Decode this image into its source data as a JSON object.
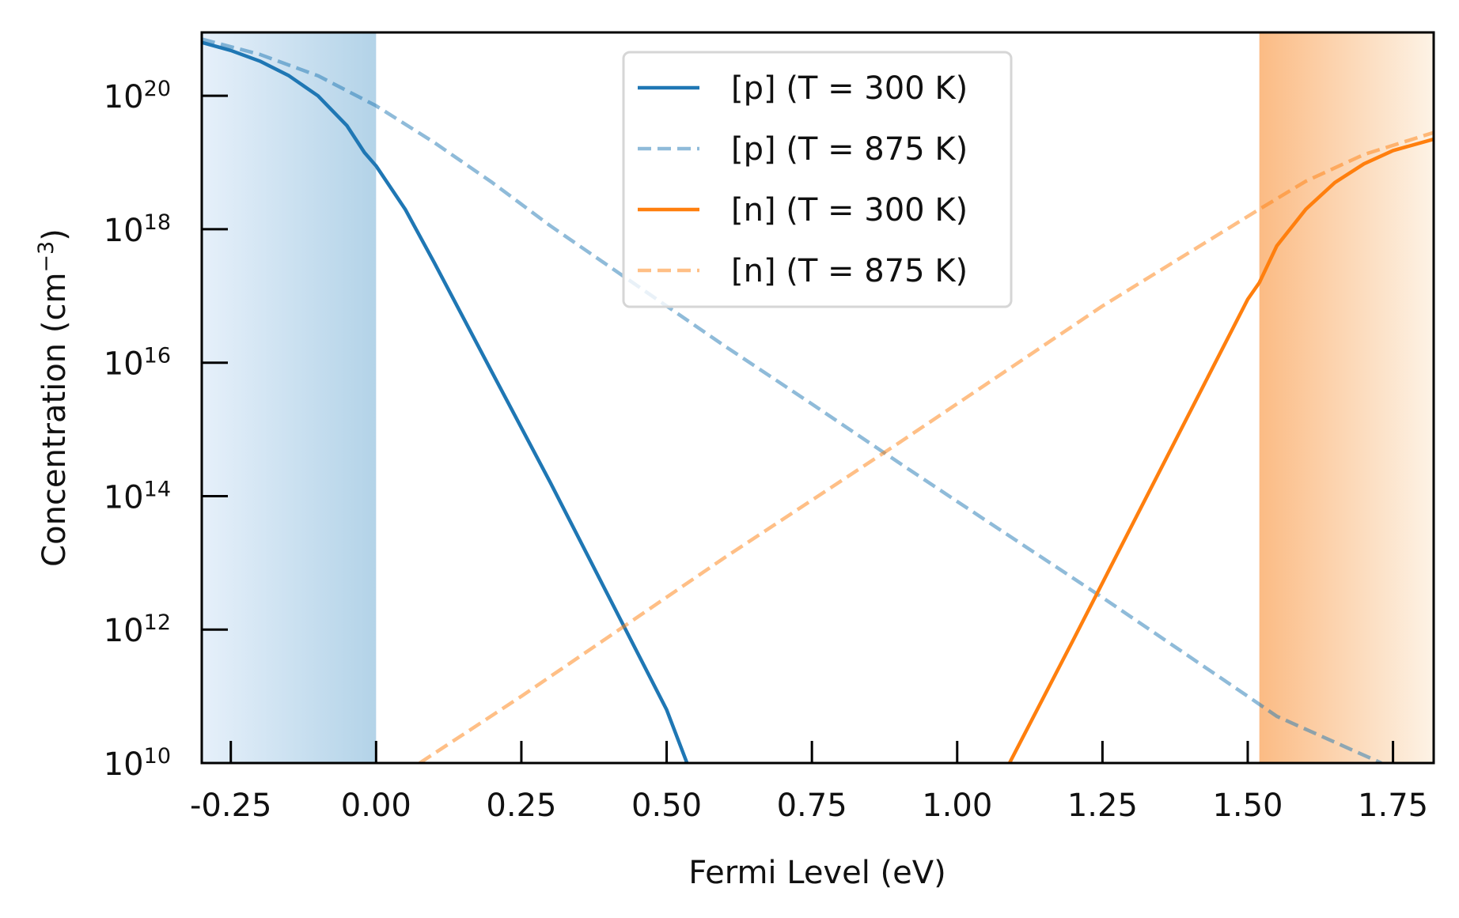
{
  "chart_data": {
    "type": "line",
    "xlabel": "Fermi Level (eV)",
    "ylabel": {
      "base": "Concentration (cm",
      "exp": "−3",
      "close": ")"
    },
    "xlim": [
      -0.3,
      1.82
    ],
    "ylim_log10": [
      10,
      20.95
    ],
    "y_scale": "log",
    "grid": false,
    "legend_position": "top-center",
    "x_ticks": [
      {
        "value": -0.25,
        "label": "-0.25"
      },
      {
        "value": 0.0,
        "label": "0.00"
      },
      {
        "value": 0.25,
        "label": "0.25"
      },
      {
        "value": 0.5,
        "label": "0.50"
      },
      {
        "value": 0.75,
        "label": "0.75"
      },
      {
        "value": 1.0,
        "label": "1.00"
      },
      {
        "value": 1.25,
        "label": "1.25"
      },
      {
        "value": 1.5,
        "label": "1.50"
      },
      {
        "value": 1.75,
        "label": "1.75"
      }
    ],
    "y_ticks": [
      {
        "exp": 10,
        "base": "10",
        "sup": "10"
      },
      {
        "exp": 12,
        "base": "10",
        "sup": "12"
      },
      {
        "exp": 14,
        "base": "10",
        "sup": "14"
      },
      {
        "exp": 16,
        "base": "10",
        "sup": "16"
      },
      {
        "exp": 18,
        "base": "10",
        "sup": "18"
      },
      {
        "exp": 20,
        "base": "10",
        "sup": "20"
      }
    ],
    "shaded_regions": [
      {
        "name": "valence-band",
        "x0": -0.3,
        "x1": 0.0,
        "color_light": "#e6f0fa",
        "color_dark": "#b3d3e8",
        "fade": "to-left"
      },
      {
        "name": "conduction-band",
        "x0": 1.52,
        "x1": 1.82,
        "color_light": "#fdf3e6",
        "color_dark": "#fbbb84",
        "fade": "to-right"
      }
    ],
    "series": [
      {
        "name": "[p] (T = 300 K)",
        "color": "#1f77b4",
        "dash": "solid",
        "opacity": 1,
        "x": [
          -0.3,
          -0.25,
          -0.2,
          -0.15,
          -0.1,
          -0.05,
          -0.02,
          0.0,
          0.05,
          0.1,
          0.2,
          0.3,
          0.4,
          0.5,
          0.535
        ],
        "log10_y": [
          20.8,
          20.68,
          20.52,
          20.3,
          20.0,
          19.55,
          19.15,
          18.95,
          18.3,
          17.5,
          15.85,
          14.2,
          12.5,
          10.8,
          10.0
        ]
      },
      {
        "name": "[p] (T = 875 K)",
        "color": "#1f77b4",
        "dash": "dashed",
        "opacity": 0.5,
        "x": [
          -0.3,
          -0.2,
          -0.1,
          0.0,
          0.1,
          0.2,
          0.3,
          0.4,
          0.5,
          0.6,
          0.75,
          0.9,
          1.0,
          1.25,
          1.5,
          1.55,
          1.73
        ],
        "log10_y": [
          20.85,
          20.62,
          20.3,
          19.85,
          19.3,
          18.7,
          18.05,
          17.45,
          16.85,
          16.25,
          15.38,
          14.5,
          13.92,
          12.48,
          11.0,
          10.7,
          10.0
        ]
      },
      {
        "name": "[n] (T = 300 K)",
        "color": "#ff7f0e",
        "dash": "solid",
        "opacity": 1,
        "x": [
          1.09,
          1.2,
          1.3,
          1.4,
          1.5,
          1.52,
          1.55,
          1.6,
          1.65,
          1.7,
          1.75,
          1.82
        ],
        "log10_y": [
          10.0,
          11.85,
          13.55,
          15.25,
          16.95,
          17.2,
          17.75,
          18.3,
          18.7,
          18.98,
          19.18,
          19.35
        ]
      },
      {
        "name": "[n] (T = 875 K)",
        "color": "#ff7f0e",
        "dash": "dashed",
        "opacity": 0.5,
        "x": [
          0.075,
          0.25,
          0.41,
          0.6,
          0.9,
          1.25,
          1.52,
          1.6,
          1.7,
          1.82
        ],
        "log10_y": [
          10.0,
          11.0,
          11.95,
          13.08,
          14.8,
          16.85,
          18.3,
          18.72,
          19.12,
          19.45
        ]
      }
    ]
  }
}
